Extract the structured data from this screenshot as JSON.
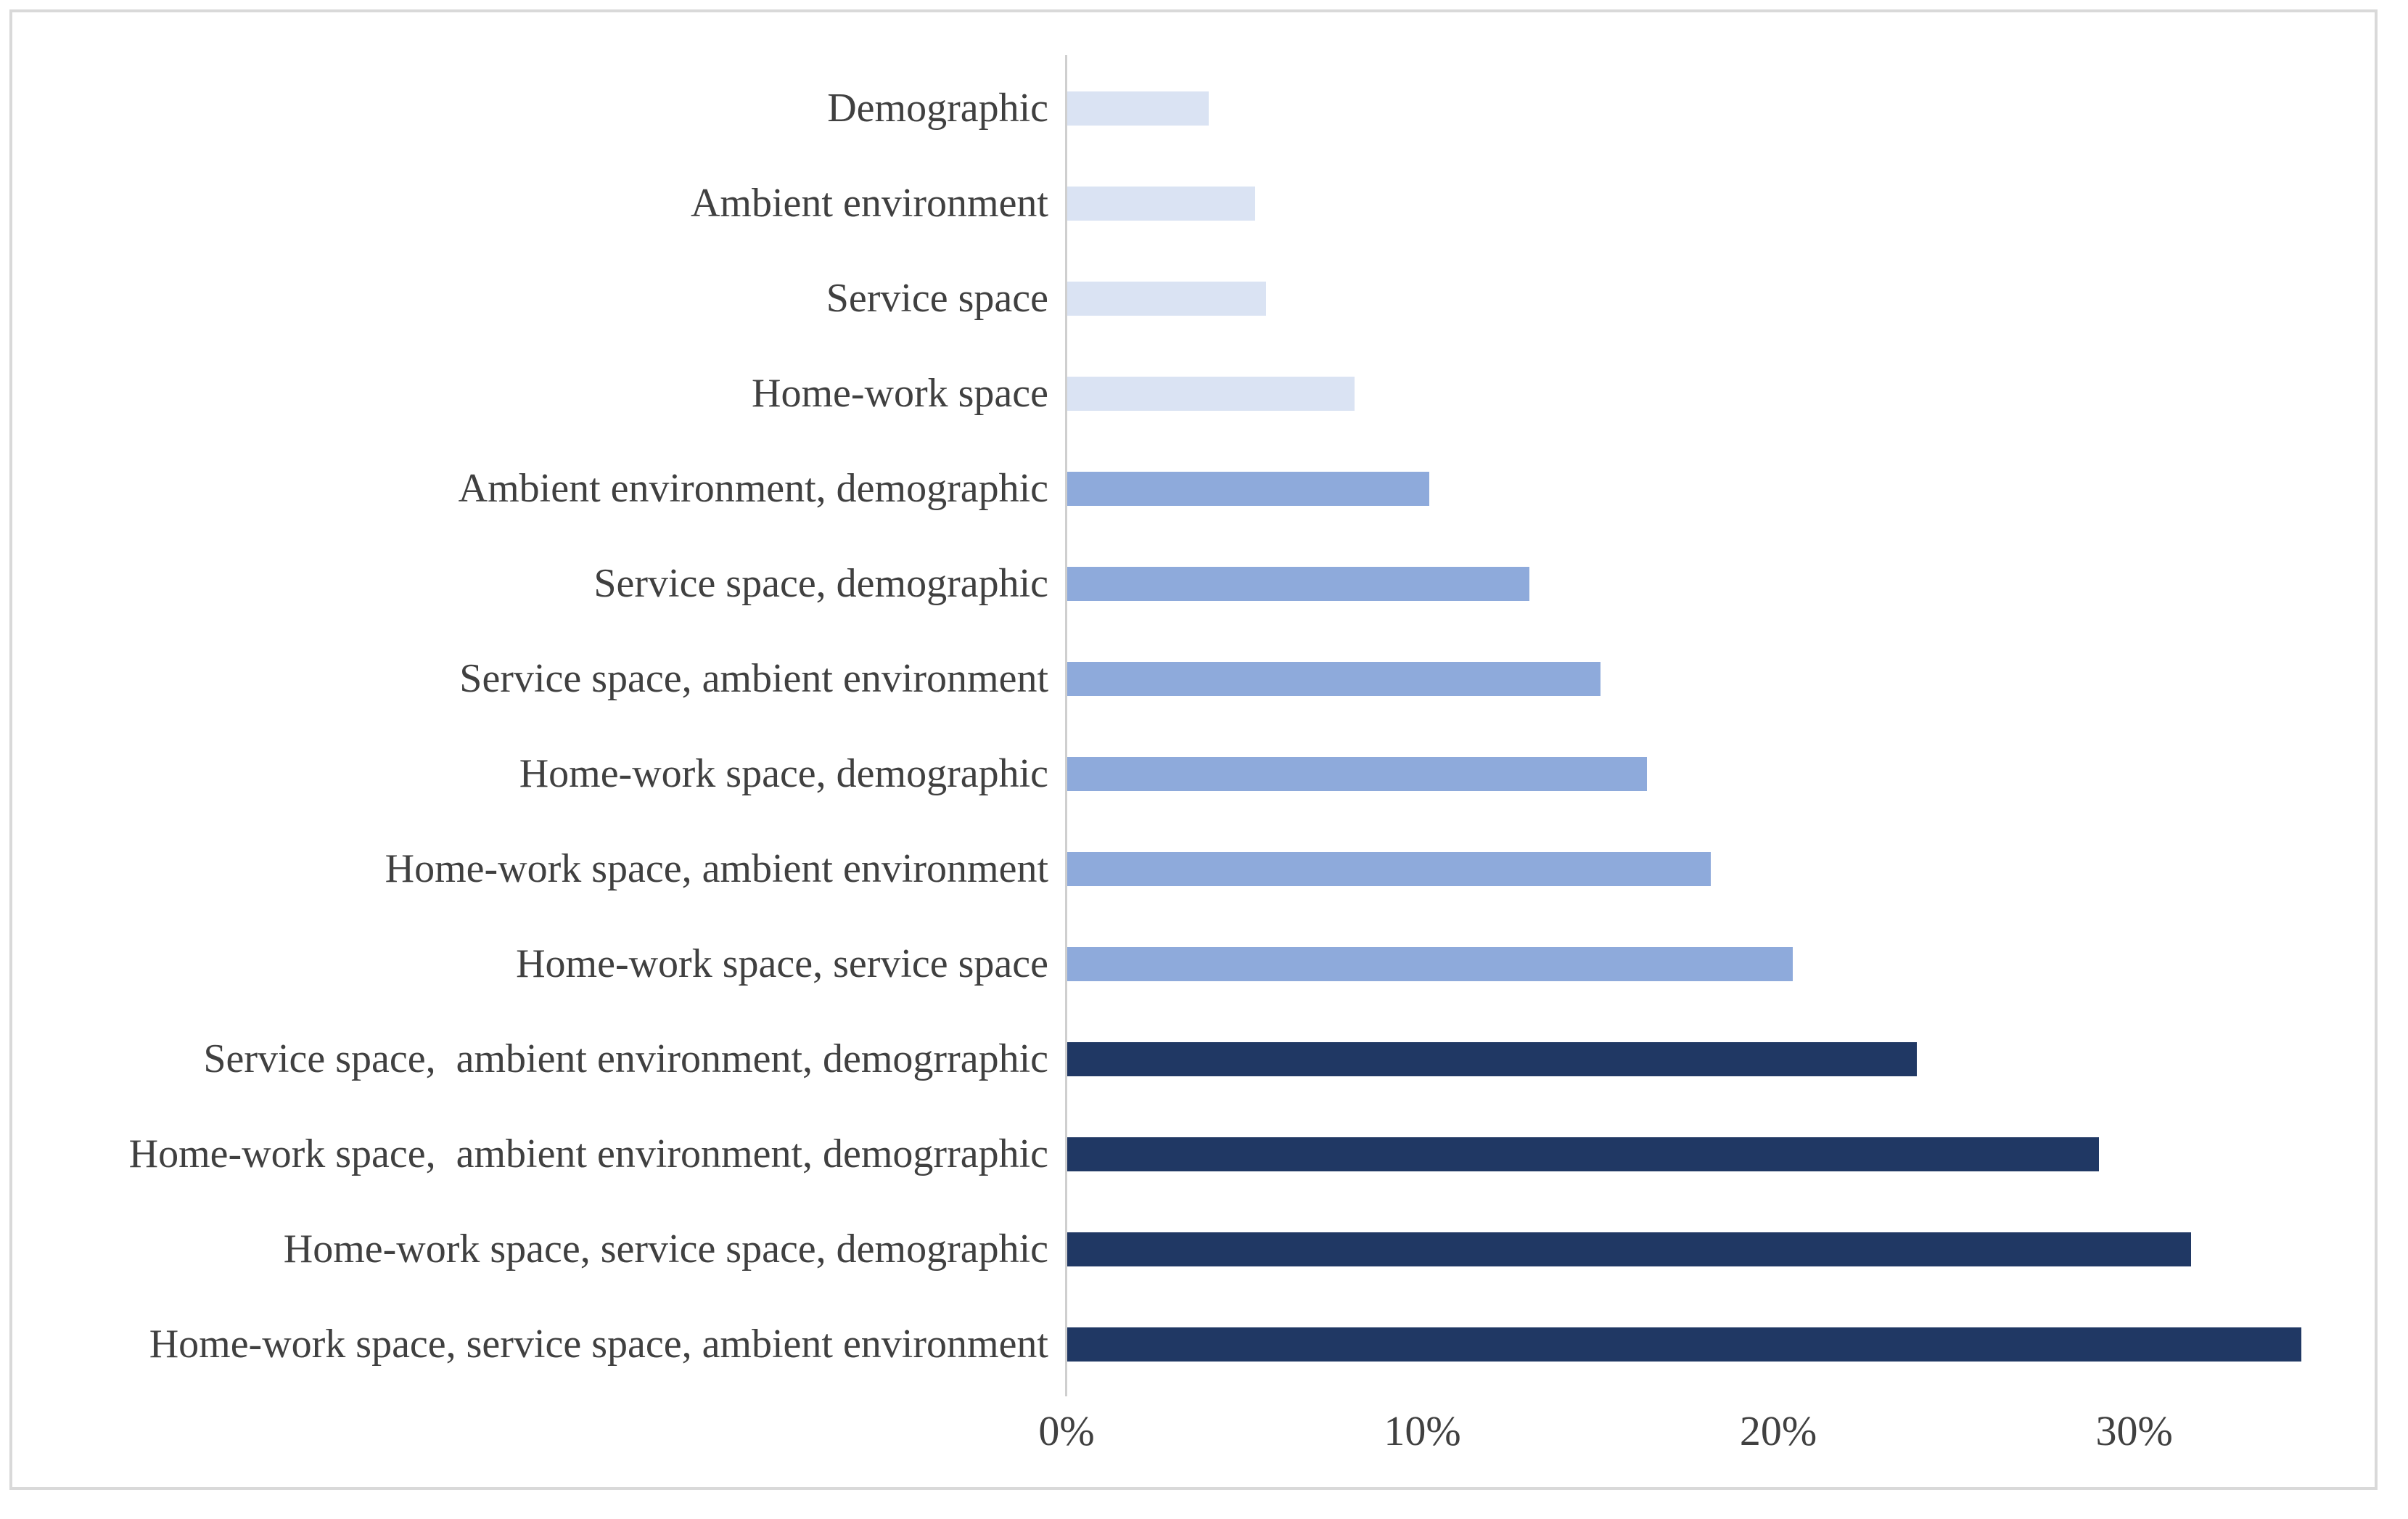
{
  "chart_data": {
    "type": "bar",
    "orientation": "horizontal",
    "title": "",
    "xlabel": "",
    "ylabel": "",
    "unit": "percent",
    "grid": false,
    "legend": "none",
    "xlim": [
      0,
      37
    ],
    "x_tick_labels": [
      "0%",
      "10%",
      "20%",
      "30%"
    ],
    "x_tick_values": [
      0,
      10,
      20,
      30
    ],
    "categories": [
      "Demographic",
      "Ambient environment",
      "Service space",
      "Home-work space",
      "Ambient environment, demographic",
      "Service space, demographic",
      "Service space, ambient environment",
      "Home-work space, demographic",
      "Home-work space, ambient environment",
      "Home-work space, service space",
      "Service space,  ambient environment, demogrraphic",
      "Home-work space,  ambient environment, demogrraphic",
      "Home-work space, service space, demographic",
      "Home-work space, service space, ambient environment"
    ],
    "values": [
      4.0,
      5.3,
      5.6,
      8.1,
      10.2,
      13.0,
      15.0,
      16.3,
      18.1,
      20.4,
      23.9,
      29.0,
      31.6,
      34.7
    ],
    "color_groups": [
      "light",
      "light",
      "light",
      "light",
      "medium",
      "medium",
      "medium",
      "medium",
      "medium",
      "medium",
      "dark",
      "dark",
      "dark",
      "dark"
    ]
  },
  "colors": {
    "light_bar": "#dae3f3",
    "medium_bar": "#8eaadb",
    "dark_bar": "#203864",
    "axis_line": "#cfcfcf",
    "chart_border": "#d9d9d9",
    "text": "#404040",
    "background": "#ffffff"
  }
}
